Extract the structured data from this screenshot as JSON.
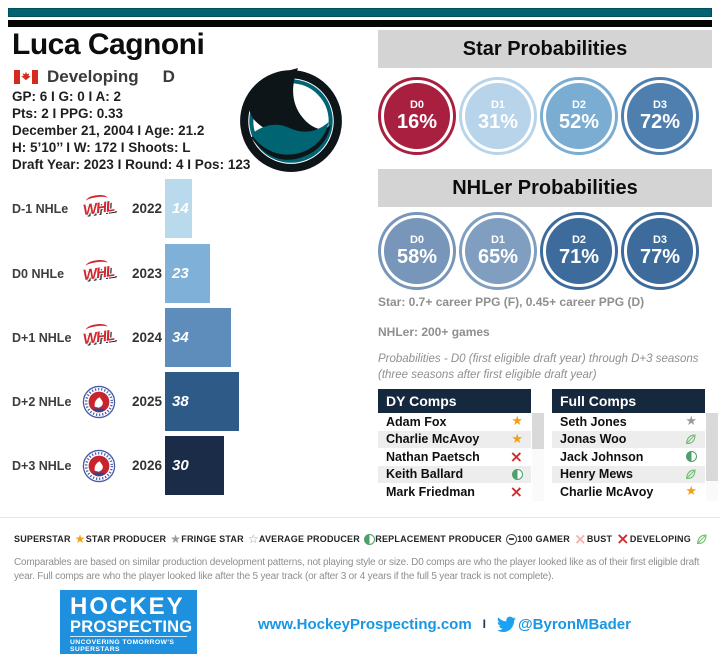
{
  "player": {
    "name": "Luca Cagnoni",
    "nationality": "Canada",
    "status": "Developing",
    "position": "D",
    "stats_lines": [
      "GP: 6 I G: 0 I A: 2",
      "Pts: 2 I PPG: 0.33",
      "December 21, 2004 I Age: 21.2",
      "H: 5’10’’ I W: 172 I Shoots: L",
      "Draft Year: 2023 I Round: 4 I Pos: 123"
    ]
  },
  "team_logo": "san-jose-sharks",
  "chart_data": [
    {
      "id": "nhle_track",
      "type": "bar",
      "orientation": "horizontal",
      "rows": [
        {
          "label": "D-1 NHLe",
          "league": "WHL",
          "year": "2022",
          "value": 14,
          "color": "#b9d9ed"
        },
        {
          "label": "D0 NHLe",
          "league": "WHL",
          "year": "2023",
          "value": 23,
          "color": "#7fb0d8"
        },
        {
          "label": "D+1 NHLe",
          "league": "WHL",
          "year": "2024",
          "value": 34,
          "color": "#5e8dbb"
        },
        {
          "label": "D+2 NHLe",
          "league": "AHL",
          "year": "2025",
          "value": 38,
          "color": "#2e5a88"
        },
        {
          "label": "D+3 NHLe",
          "league": "AHL",
          "year": "2026",
          "value": 30,
          "color": "#1a2c47"
        }
      ]
    },
    {
      "id": "star_probabilities",
      "type": "kpi_circles",
      "title": "Star Probabilities",
      "categories": [
        "D0",
        "D1",
        "D2",
        "D3"
      ],
      "values": [
        16,
        31,
        52,
        72
      ],
      "unit": "%",
      "colors": [
        "#a91f3f",
        "#b7d4ea",
        "#7badd2",
        "#4f7fae"
      ]
    },
    {
      "id": "nhler_probabilities",
      "type": "kpi_circles",
      "title": "NHLer Probabilities",
      "categories": [
        "D0",
        "D1",
        "D2",
        "D3"
      ],
      "values": [
        58,
        65,
        71,
        77
      ],
      "unit": "%",
      "colors": [
        "#7796ba",
        "#7f9ec0",
        "#3d6b9b",
        "#3d6b9b"
      ]
    }
  ],
  "notes": {
    "star": "Star: 0.7+ career PPG (F), 0.45+ career PPG (D)",
    "nhler": "NHLer: 200+ games",
    "probabilities": "Probabilities - D0 (first eligible draft year) through D+3 seasons (three seasons after first eligible draft year)"
  },
  "comps": {
    "dy": {
      "title": "DY Comps",
      "rows": [
        {
          "name": "Adam Fox",
          "icon": "superstar"
        },
        {
          "name": "Charlie McAvoy",
          "icon": "superstar"
        },
        {
          "name": "Nathan Paetsch",
          "icon": "bust"
        },
        {
          "name": "Keith Ballard",
          "icon": "average-producer"
        },
        {
          "name": "Mark Friedman",
          "icon": "bust"
        }
      ]
    },
    "full": {
      "title": "Full Comps",
      "rows": [
        {
          "name": "Seth Jones",
          "icon": "star-producer"
        },
        {
          "name": "Jonas Woo",
          "icon": "developing"
        },
        {
          "name": "Jack Johnson",
          "icon": "average-producer"
        },
        {
          "name": "Henry Mews",
          "icon": "developing"
        },
        {
          "name": "Charlie McAvoy",
          "icon": "superstar"
        }
      ]
    }
  },
  "legend": {
    "items": [
      {
        "label": "SUPERSTAR",
        "icon": "superstar"
      },
      {
        "label": "STAR PRODUCER",
        "icon": "star-producer"
      },
      {
        "label": "FRINGE STAR",
        "icon": "fringe-star"
      },
      {
        "label": "AVERAGE PRODUCER",
        "icon": "average-producer"
      },
      {
        "label": "REPLACEMENT PRODUCER",
        "icon": "replacement-producer"
      },
      {
        "label": "100 GAMER",
        "icon": "100-gamer"
      },
      {
        "label": "BUST",
        "icon": "bust"
      },
      {
        "label": "DEVELOPING",
        "icon": "developing"
      }
    ]
  },
  "icon_colors": {
    "superstar": "#f2a117",
    "star_producer": "#9a9a9a",
    "fringe_star": "#9a9a9a",
    "average_producer": "#4ea06a",
    "replacement_producer": "#4a4a4a",
    "gamer_100": "#f0b3ac",
    "bust": "#d22b2b",
    "developing": "#6fbe6f"
  },
  "disclaimer": "Comparables are based on similar production development patterns, not playing style or size. D0 comps are who the player looked like as of their first eligible draft year. Full comps are who the player looked like after the 5 year track (or after 3 or 4 years if the full 5 year track is not complete).",
  "footer": {
    "logo_line1": "HOCKEY",
    "logo_line2": "PROSPECTING",
    "logo_tagline": "UNCOVERING TOMORROW'S SUPERSTARS",
    "website": "www.HockeyProspecting.com",
    "separator": "I",
    "twitter": "@ByronMBader"
  },
  "colors": {
    "accent_teal": "#006473",
    "header_gray": "#d4d4d4",
    "table_navy": "#15283d",
    "link_blue": "#1897e4",
    "logo_blue": "#1e90dd"
  }
}
